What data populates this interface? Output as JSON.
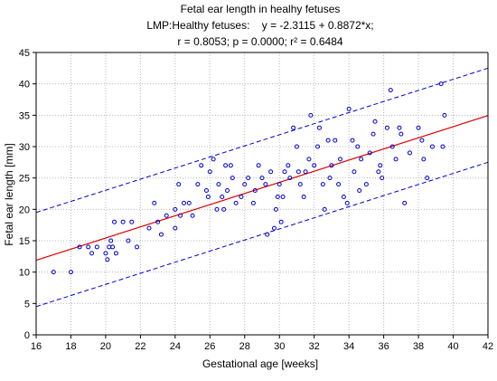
{
  "colors": {
    "background": "#ffffff",
    "axis": "#000000",
    "grid": "#b8b8b8",
    "points": "#0000cc",
    "regression_line": "#dd0000",
    "prediction_band": "#0000cc"
  },
  "chart_data": {
    "type": "scatter",
    "title": "Fetal ear length in healhy fetuses",
    "subtitle_line1": "LMP:Healthy fetuses:    y = -2.3115 + 0.8872*x;",
    "subtitle_line2": "r = 0.8053; p = 0.0000; r² = 0.6484",
    "xlabel": "Gestational age [weeks]",
    "ylabel": "Fetal ear length [mm]",
    "xlim": [
      16,
      42
    ],
    "ylim": [
      0,
      45
    ],
    "x_ticks": [
      16,
      18,
      20,
      22,
      24,
      26,
      28,
      30,
      32,
      34,
      36,
      38,
      40,
      42
    ],
    "y_ticks": [
      0,
      5,
      10,
      15,
      20,
      25,
      30,
      35,
      40,
      45
    ],
    "grid": true,
    "marker": "open-circle",
    "regression": {
      "intercept": -2.3115,
      "slope": 0.8872,
      "style": "solid"
    },
    "prediction_band": {
      "style": "dashed",
      "upper": [
        [
          16,
          19.5
        ],
        [
          42,
          42.5
        ]
      ],
      "lower": [
        [
          16,
          4.5
        ],
        [
          42,
          27.5
        ]
      ]
    },
    "points": [
      [
        17,
        10
      ],
      [
        18,
        10
      ],
      [
        18.5,
        14
      ],
      [
        19,
        14
      ],
      [
        19.2,
        13
      ],
      [
        19.5,
        14
      ],
      [
        20,
        13
      ],
      [
        20.1,
        12
      ],
      [
        20.2,
        14
      ],
      [
        20.3,
        15
      ],
      [
        20.4,
        14
      ],
      [
        20.5,
        18
      ],
      [
        20.6,
        13
      ],
      [
        21,
        18
      ],
      [
        21.3,
        15
      ],
      [
        21.5,
        18
      ],
      [
        21.8,
        14
      ],
      [
        22.5,
        17
      ],
      [
        22.8,
        21
      ],
      [
        23,
        18
      ],
      [
        23.2,
        16
      ],
      [
        23.5,
        19
      ],
      [
        24,
        20
      ],
      [
        24,
        17
      ],
      [
        24.3,
        19
      ],
      [
        24.5,
        21
      ],
      [
        24.2,
        24
      ],
      [
        24.8,
        21
      ],
      [
        25,
        19
      ],
      [
        25.3,
        24
      ],
      [
        25.5,
        27
      ],
      [
        25.8,
        23
      ],
      [
        26,
        26
      ],
      [
        26.2,
        28
      ],
      [
        26.4,
        20
      ],
      [
        26.5,
        24
      ],
      [
        26.7,
        22
      ],
      [
        26.8,
        20
      ],
      [
        27,
        23
      ],
      [
        27.2,
        27
      ],
      [
        27.5,
        21
      ],
      [
        27.8,
        22
      ],
      [
        28,
        24
      ],
      [
        28.2,
        25
      ],
      [
        28.5,
        21
      ],
      [
        28.6,
        23
      ],
      [
        28.8,
        27
      ],
      [
        29,
        25
      ],
      [
        29.2,
        24
      ],
      [
        29.3,
        16
      ],
      [
        29.5,
        26
      ],
      [
        29.7,
        17
      ],
      [
        29.8,
        20
      ],
      [
        30,
        24
      ],
      [
        30.2,
        22
      ],
      [
        30.3,
        26
      ],
      [
        30.5,
        27
      ],
      [
        30.6,
        25
      ],
      [
        30.8,
        33
      ],
      [
        31,
        30
      ],
      [
        31.2,
        24
      ],
      [
        31.4,
        22
      ],
      [
        31.5,
        26
      ],
      [
        31.7,
        28
      ],
      [
        31.8,
        35
      ],
      [
        32,
        27
      ],
      [
        32.2,
        30
      ],
      [
        32.3,
        33
      ],
      [
        32.5,
        24
      ],
      [
        32.6,
        20
      ],
      [
        32.8,
        31
      ],
      [
        33,
        27
      ],
      [
        33.2,
        31
      ],
      [
        33.4,
        24
      ],
      [
        33.5,
        28
      ],
      [
        33.7,
        22
      ],
      [
        34,
        36
      ],
      [
        34.2,
        31
      ],
      [
        34.3,
        26
      ],
      [
        34.5,
        30
      ],
      [
        34.7,
        28
      ],
      [
        35,
        24
      ],
      [
        35.2,
        29
      ],
      [
        35.4,
        32
      ],
      [
        35.5,
        34
      ],
      [
        35.7,
        26
      ],
      [
        35.9,
        25
      ],
      [
        36.2,
        33
      ],
      [
        36.4,
        39
      ],
      [
        36.5,
        30
      ],
      [
        36.7,
        28
      ],
      [
        37,
        32
      ],
      [
        37.2,
        21
      ],
      [
        38,
        33
      ],
      [
        38.2,
        31
      ],
      [
        38.3,
        28
      ],
      [
        38.5,
        25
      ],
      [
        38.8,
        30
      ],
      [
        39.3,
        40
      ],
      [
        39.5,
        35
      ],
      [
        39.4,
        30
      ],
      [
        34.6,
        23
      ],
      [
        33.9,
        21
      ],
      [
        30.1,
        18
      ],
      [
        29.9,
        22
      ],
      [
        27.3,
        25
      ],
      [
        26.9,
        27
      ],
      [
        25.9,
        22
      ],
      [
        31.1,
        26
      ],
      [
        32.9,
        25
      ],
      [
        35.8,
        27
      ],
      [
        37.5,
        29
      ],
      [
        36.9,
        33
      ]
    ]
  }
}
